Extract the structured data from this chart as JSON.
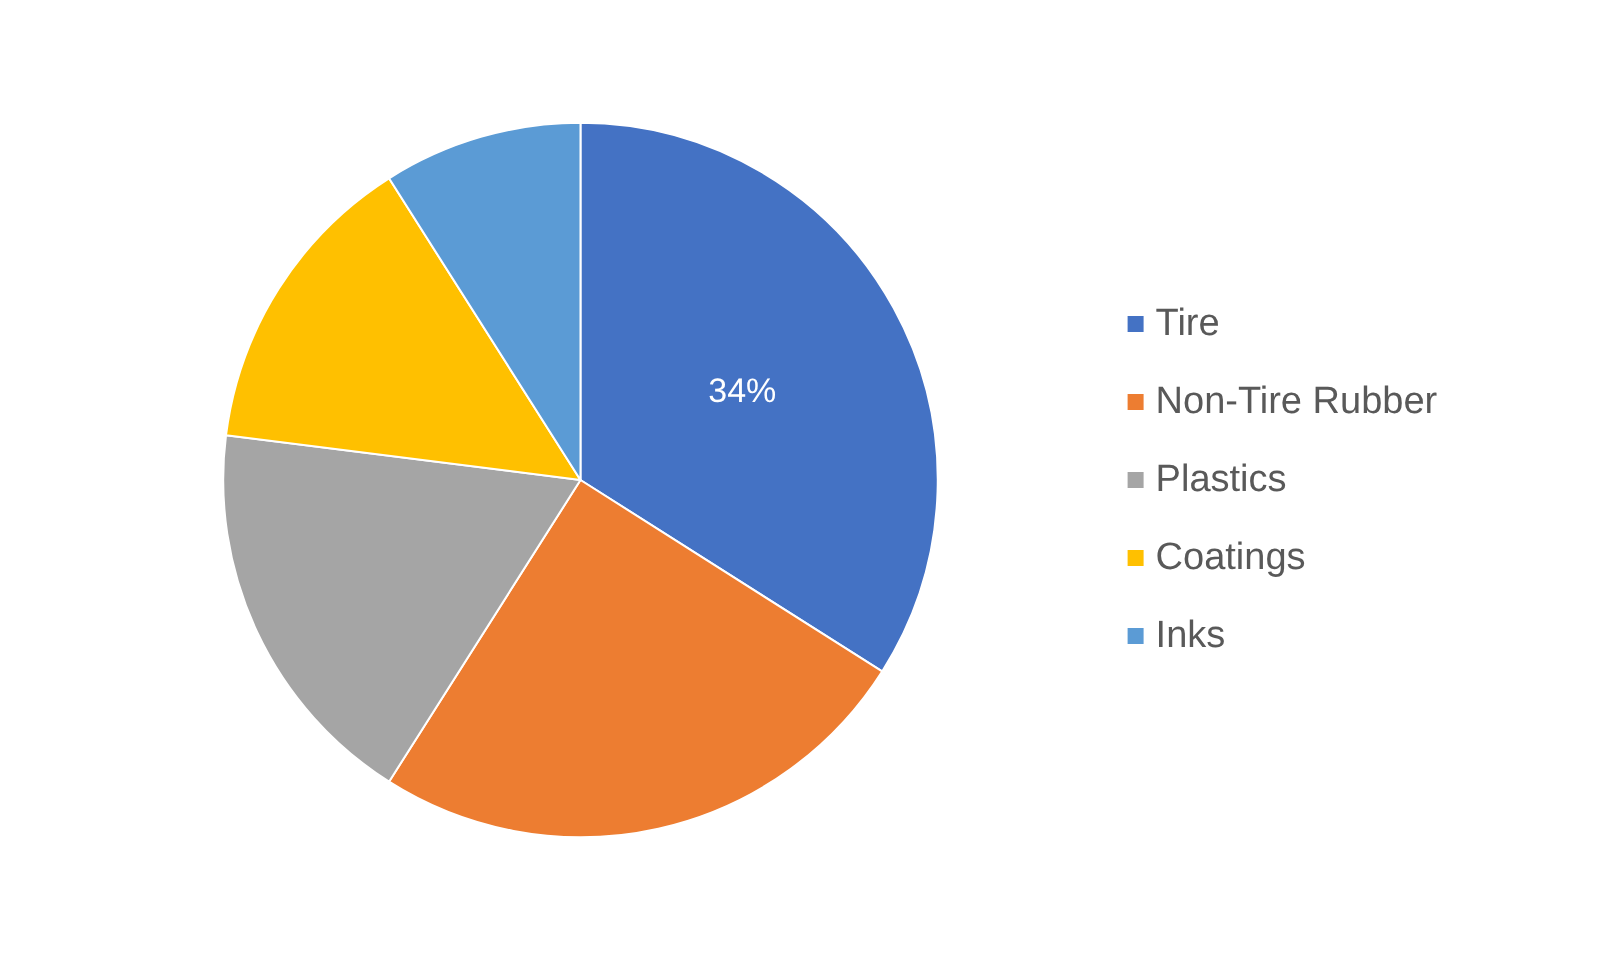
{
  "chart_data": {
    "type": "pie",
    "categories": [
      "Tire",
      "Non-Tire Rubber",
      "Plastics",
      "Coatings",
      "Inks"
    ],
    "values": [
      34,
      25,
      18,
      14,
      9
    ],
    "colors": [
      "#4472c4",
      "#ed7d31",
      "#a5a5a5",
      "#ffc000",
      "#5b9bd5"
    ],
    "value_labels": [
      "34%",
      null,
      null,
      null,
      null
    ],
    "legend": "right"
  }
}
